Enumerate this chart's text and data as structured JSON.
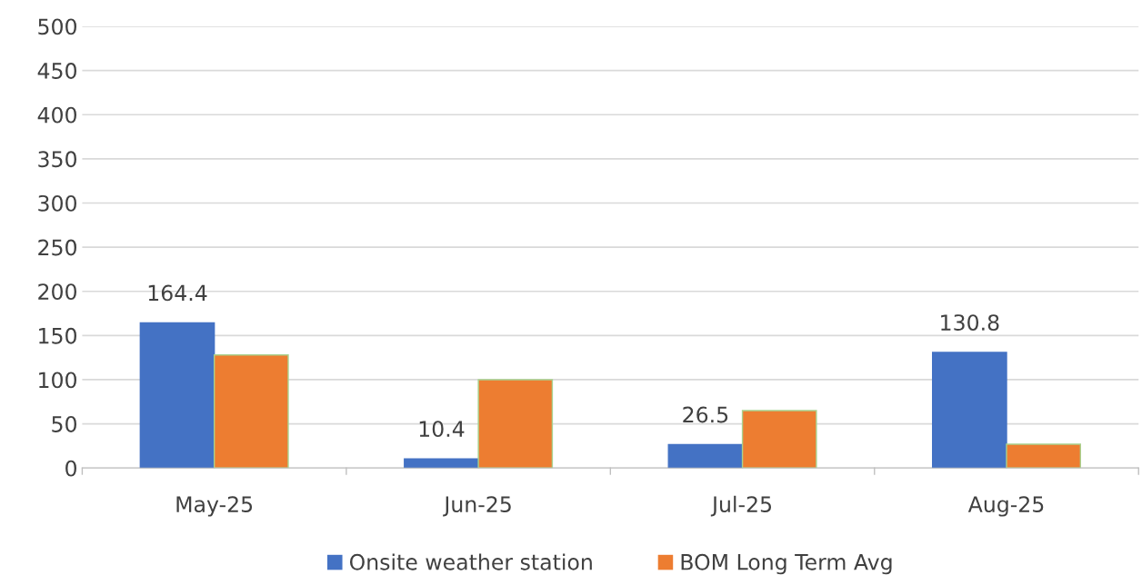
{
  "chart_data": {
    "type": "bar",
    "categories": [
      "May-25",
      "Jun-25",
      "Jul-25",
      "Aug-25"
    ],
    "series": [
      {
        "name": "Onsite weather station",
        "color": "#4472c4",
        "values": [
          164.4,
          10.4,
          26.5,
          130.8
        ],
        "value_labels": [
          "164.4",
          "10.4",
          "26.5",
          "130.8"
        ]
      },
      {
        "name": "BOM Long Term Avg",
        "color": "#ed7d31",
        "values": [
          128,
          100,
          65,
          27
        ]
      }
    ],
    "ylim": [
      0,
      500
    ],
    "yticks": [
      0,
      50,
      100,
      150,
      200,
      250,
      300,
      350,
      400,
      450,
      500
    ],
    "grid": "y",
    "legend": "bottom"
  }
}
